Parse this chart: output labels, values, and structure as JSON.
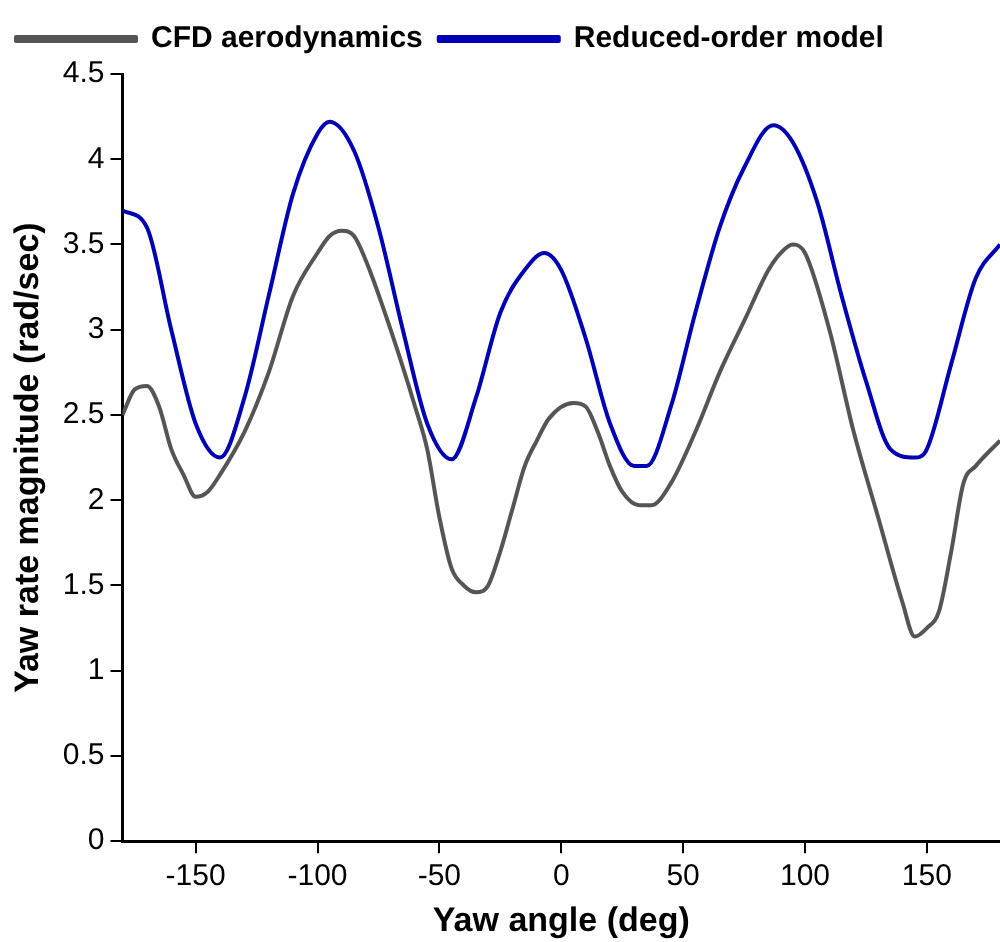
{
  "chart_data": {
    "type": "line",
    "xlabel": "Yaw angle (deg)",
    "ylabel": "Yaw rate magnitude (rad/sec)",
    "xlim": [
      -180,
      180
    ],
    "xticks": [
      -150,
      -100,
      -50,
      0,
      50,
      100,
      150
    ],
    "ylim": [
      0,
      4.5
    ],
    "yticks": [
      0,
      0.5,
      1,
      1.5,
      2,
      2.5,
      3,
      3.5,
      4,
      4.5
    ],
    "grid": false,
    "legend": "top",
    "marker": "none",
    "line_style": "solid",
    "series": [
      {
        "name": "CFD aerodynamics",
        "color": "#555555",
        "x": [
          -180,
          -175,
          -170,
          -165,
          -160,
          -155,
          -150,
          -145,
          -140,
          -130,
          -120,
          -110,
          -100,
          -95,
          -90,
          -85,
          -80,
          -70,
          -60,
          -55,
          -50,
          -45,
          -40,
          -35,
          -30,
          -25,
          -20,
          -15,
          -10,
          -5,
          5,
          10,
          15,
          20,
          25,
          32,
          37,
          45,
          55,
          65,
          75,
          85,
          90,
          95,
          100,
          110,
          120,
          130,
          140,
          145,
          150,
          155,
          160,
          165,
          170,
          180
        ],
        "values": [
          2.5,
          2.65,
          2.67,
          2.55,
          2.3,
          2.15,
          2.02,
          2.05,
          2.15,
          2.4,
          2.75,
          3.2,
          3.45,
          3.55,
          3.58,
          3.55,
          3.4,
          3.0,
          2.55,
          2.3,
          1.9,
          1.6,
          1.5,
          1.46,
          1.5,
          1.7,
          1.95,
          2.2,
          2.35,
          2.48,
          2.57,
          2.55,
          2.4,
          2.2,
          2.05,
          1.97,
          1.97,
          2.1,
          2.4,
          2.75,
          3.05,
          3.35,
          3.45,
          3.5,
          3.45,
          3.0,
          2.4,
          1.9,
          1.4,
          1.2,
          1.25,
          1.35,
          1.7,
          2.1,
          2.2,
          2.35
        ]
      },
      {
        "name": "Reduced-order model",
        "color": "#0000b4",
        "x": [
          -180,
          -170,
          -160,
          -150,
          -140,
          -130,
          -120,
          -110,
          -100,
          -95,
          -85,
          -75,
          -65,
          -55,
          -45,
          -35,
          -25,
          -15,
          -7,
          0,
          10,
          20,
          30,
          35,
          45,
          55,
          65,
          75,
          87,
          95,
          105,
          115,
          125,
          135,
          145,
          150,
          160,
          170,
          180
        ],
        "values": [
          3.7,
          3.6,
          3.0,
          2.45,
          2.25,
          2.6,
          3.2,
          3.8,
          4.15,
          4.22,
          4.05,
          3.6,
          3.0,
          2.45,
          2.24,
          2.6,
          3.1,
          3.35,
          3.45,
          3.35,
          2.95,
          2.45,
          2.2,
          2.2,
          2.55,
          3.1,
          3.6,
          3.95,
          4.2,
          4.1,
          3.75,
          3.2,
          2.7,
          2.3,
          2.25,
          2.3,
          2.8,
          3.3,
          3.5
        ]
      }
    ]
  }
}
